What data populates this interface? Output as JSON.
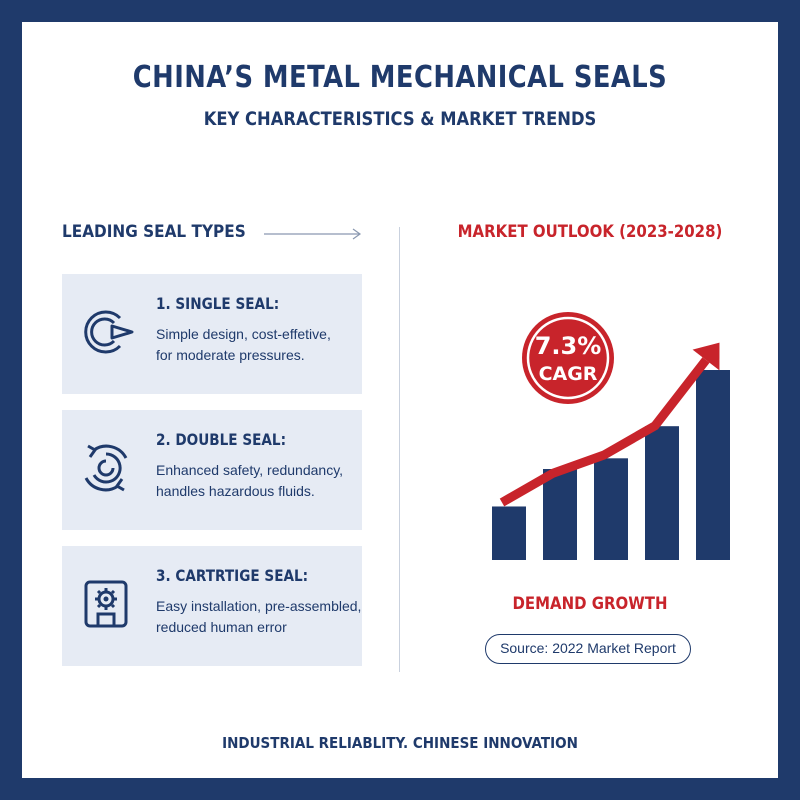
{
  "header": {
    "title": "CHINA’S METAL MECHANICAL SEALS",
    "subtitle": "KEY CHARACTERISTICS & MARKET TRENDS"
  },
  "left": {
    "heading": "LEADING SEAL TYPES",
    "cards": [
      {
        "title": "1. SINGLE SEAL:",
        "line1": "Simple design, cost-effetive,",
        "line2": "for moderate pressures.",
        "icon": "circular-arrow-icon"
      },
      {
        "title": "2. DOUBLE SEAL:",
        "line1": "Enhanced safety, redundancy,",
        "line2": "handles hazardous fluids.",
        "icon": "double-rotation-icon"
      },
      {
        "title": "3. CARTRTIGE SEAL:",
        "line1": "Easy installation, pre-assembled,",
        "line2": "reduced human error",
        "icon": "cartridge-gear-icon"
      }
    ]
  },
  "right": {
    "heading": "MARKET OUTLOOK (2023-2028)",
    "badge_value": "7.3%",
    "badge_label": "CAGR",
    "chart_caption": "DEMAND GROWTH",
    "source": "Source: 2022 Market Report"
  },
  "footer": "INDUSTRIAL RELIABLITY. CHINESE INNOVATION",
  "colors": {
    "navy": "#1f3a6b",
    "red": "#c8242b",
    "card_bg": "#e6ebf4"
  },
  "chart_data": {
    "type": "bar",
    "categories": [
      "",
      "",
      "",
      "",
      ""
    ],
    "values": [
      1.0,
      1.7,
      1.9,
      2.5,
      3.55
    ],
    "trend": [
      1.3,
      2.1,
      2.6,
      3.4,
      5.2
    ],
    "title": "DEMAND GROWTH",
    "xlabel": "",
    "ylabel": "",
    "ylim": [
      0,
      5.5
    ],
    "grid": false,
    "legend": "none"
  }
}
